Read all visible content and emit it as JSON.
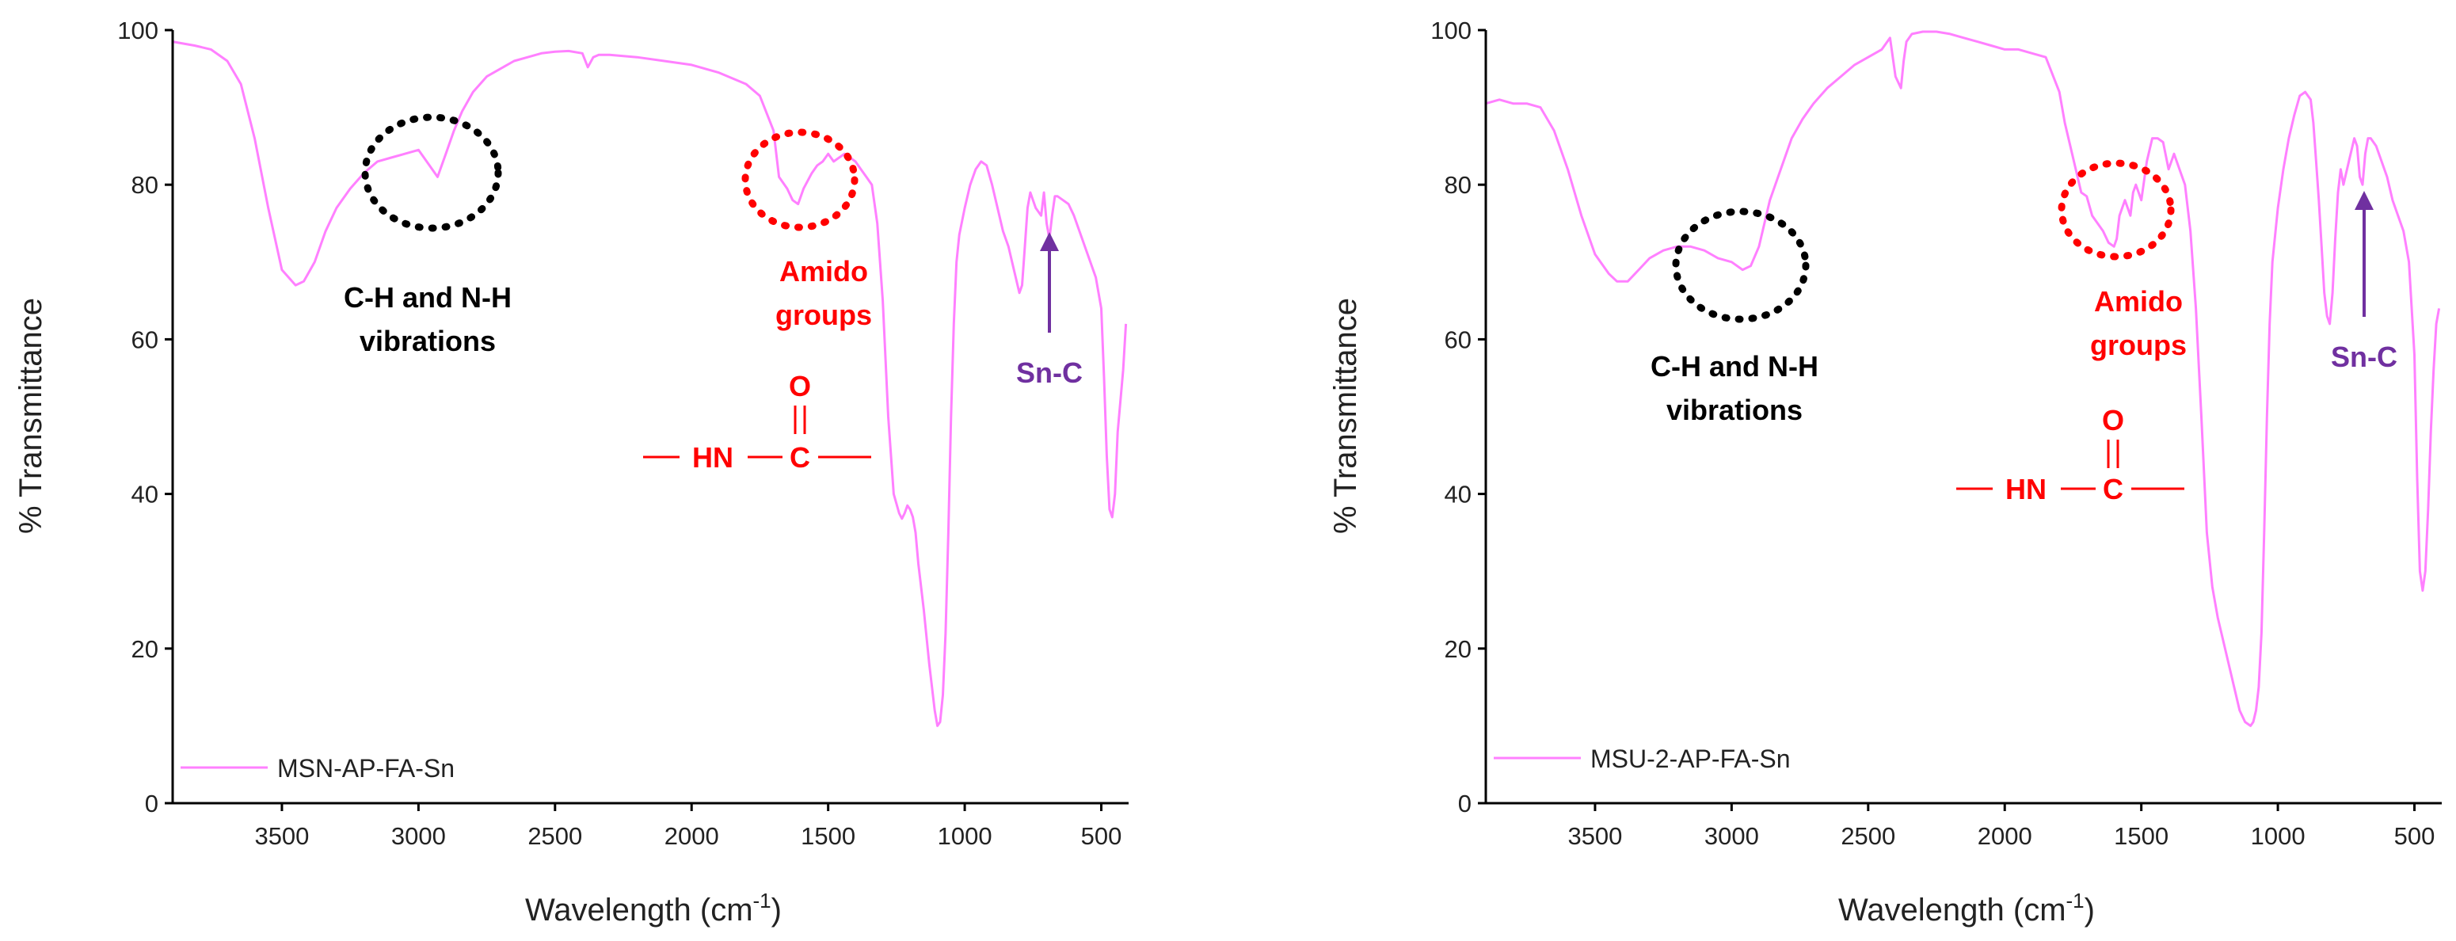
{
  "colors": {
    "series": "#ff80ff",
    "axis": "#000000",
    "annotation_black": "#000000",
    "annotation_red": "#ff0000",
    "annotation_purple": "#7030a0"
  },
  "chart_data": [
    {
      "type": "line",
      "title": "",
      "xlabel": "Wavelength (cm",
      "xlabel_sup": "-1",
      "xlabel_end": ")",
      "ylabel": "% Transmittance",
      "xlim": [
        3900,
        400
      ],
      "ylim": [
        0,
        100
      ],
      "x_ticks": [
        3500,
        3000,
        2500,
        2000,
        1500,
        1000,
        500
      ],
      "y_ticks": [
        0,
        20,
        40,
        60,
        80,
        100
      ],
      "grid": false,
      "legend": "bottom-left",
      "series": [
        {
          "name": "MSN-AP-FA-Sn",
          "x": [
            3900,
            3820,
            3760,
            3700,
            3650,
            3600,
            3550,
            3500,
            3450,
            3420,
            3380,
            3340,
            3300,
            3250,
            3200,
            3150,
            3100,
            3050,
            3000,
            2960,
            2930,
            2900,
            2870,
            2840,
            2800,
            2750,
            2700,
            2650,
            2600,
            2550,
            2500,
            2450,
            2400,
            2380,
            2360,
            2340,
            2300,
            2200,
            2100,
            2000,
            1900,
            1800,
            1750,
            1700,
            1680,
            1650,
            1630,
            1610,
            1590,
            1560,
            1540,
            1520,
            1500,
            1480,
            1460,
            1440,
            1420,
            1400,
            1380,
            1360,
            1340,
            1320,
            1300,
            1280,
            1260,
            1240,
            1230,
            1220,
            1210,
            1200,
            1190,
            1180,
            1170,
            1150,
            1130,
            1110,
            1100,
            1090,
            1080,
            1070,
            1060,
            1050,
            1040,
            1030,
            1020,
            1000,
            980,
            960,
            940,
            920,
            900,
            880,
            860,
            840,
            820,
            800,
            790,
            780,
            770,
            760,
            740,
            720,
            710,
            700,
            690,
            680,
            670,
            660,
            640,
            620,
            600,
            580,
            560,
            540,
            520,
            500,
            490,
            480,
            470,
            460,
            450,
            440,
            420,
            410
          ],
          "y": [
            98.5,
            98,
            97.5,
            96,
            93,
            86,
            77,
            69,
            67,
            67.5,
            70,
            74,
            77,
            79.5,
            81.5,
            83,
            83.5,
            84,
            84.5,
            82.5,
            81,
            84,
            87,
            89.5,
            92,
            94,
            95,
            96,
            96.5,
            97,
            97.2,
            97.3,
            97,
            95.2,
            96.5,
            96.8,
            96.8,
            96.5,
            96,
            95.5,
            94.5,
            93,
            91.5,
            87,
            81,
            79.5,
            78,
            77.5,
            79.5,
            81.5,
            82.5,
            83,
            84,
            83,
            83.5,
            84,
            83.5,
            83,
            82,
            81,
            80,
            75,
            65,
            50,
            40,
            37.5,
            36.8,
            37.5,
            38.5,
            38,
            37,
            35,
            31,
            25,
            18,
            12,
            10,
            10.5,
            14,
            22,
            35,
            50,
            62,
            70,
            73.5,
            77,
            80,
            82,
            83,
            82.5,
            80,
            77,
            74,
            72,
            69,
            66,
            67,
            72,
            77,
            79,
            77,
            76,
            79,
            75,
            73,
            76,
            78.5,
            78.5,
            78,
            77.5,
            76,
            74,
            72,
            70,
            68,
            64,
            55,
            45,
            38,
            37,
            40,
            48,
            56,
            62
          ]
        }
      ],
      "annotations": {
        "ch_nh_line1": "C-H and N-H",
        "ch_nh_line2": "vibrations",
        "amido_line1": "Amido",
        "amido_line2": "groups",
        "amido_o": "O",
        "amido_hn": "HN",
        "amido_c": "C",
        "snc": "Sn-C"
      }
    },
    {
      "type": "line",
      "title": "",
      "xlabel": "Wavelength (cm",
      "xlabel_sup": "-1",
      "xlabel_end": ")",
      "ylabel": "% Transmittance",
      "xlim": [
        3900,
        400
      ],
      "ylim": [
        0,
        100
      ],
      "x_ticks": [
        3500,
        3000,
        2500,
        2000,
        1500,
        1000,
        500
      ],
      "y_ticks": [
        0,
        20,
        40,
        60,
        80,
        100
      ],
      "grid": false,
      "legend": "bottom-left",
      "series": [
        {
          "name": "MSU-2-AP-FA-Sn",
          "x": [
            3900,
            3850,
            3800,
            3750,
            3700,
            3650,
            3600,
            3550,
            3500,
            3450,
            3420,
            3380,
            3340,
            3300,
            3250,
            3200,
            3150,
            3100,
            3050,
            3000,
            2960,
            2930,
            2900,
            2880,
            2860,
            2820,
            2780,
            2740,
            2700,
            2650,
            2600,
            2550,
            2500,
            2450,
            2420,
            2400,
            2380,
            2370,
            2360,
            2340,
            2300,
            2250,
            2200,
            2150,
            2100,
            2050,
            2000,
            1950,
            1900,
            1850,
            1800,
            1780,
            1760,
            1740,
            1720,
            1700,
            1680,
            1660,
            1640,
            1620,
            1600,
            1590,
            1580,
            1560,
            1540,
            1530,
            1520,
            1500,
            1480,
            1460,
            1440,
            1420,
            1400,
            1380,
            1360,
            1340,
            1320,
            1300,
            1280,
            1260,
            1240,
            1220,
            1200,
            1180,
            1160,
            1140,
            1120,
            1100,
            1090,
            1080,
            1070,
            1060,
            1050,
            1040,
            1030,
            1020,
            1000,
            980,
            960,
            940,
            920,
            900,
            880,
            870,
            860,
            850,
            840,
            830,
            820,
            810,
            800,
            790,
            780,
            770,
            760,
            740,
            720,
            710,
            700,
            690,
            680,
            670,
            660,
            640,
            620,
            600,
            580,
            560,
            540,
            520,
            500,
            490,
            480,
            470,
            460,
            450,
            440,
            430,
            420,
            410
          ],
          "y": [
            90.5,
            91,
            90.5,
            90.5,
            90,
            87,
            82,
            76,
            71,
            68.5,
            67.5,
            67.5,
            69,
            70.5,
            71.5,
            72,
            72,
            71.5,
            70.5,
            70,
            69,
            69.5,
            72,
            75,
            78,
            82,
            86,
            88.5,
            90.5,
            92.5,
            94,
            95.5,
            96.5,
            97.5,
            99,
            94,
            92.5,
            96,
            98.5,
            99.5,
            99.8,
            99.8,
            99.5,
            99,
            98.5,
            98,
            97.5,
            97.5,
            97,
            96.5,
            92,
            88,
            85,
            82,
            79,
            78.5,
            76,
            75,
            74,
            72.5,
            72,
            73,
            76,
            78,
            76,
            79,
            80,
            78,
            83,
            86,
            86,
            85.5,
            82,
            84,
            82,
            80,
            74,
            64,
            50,
            35,
            28,
            24,
            21,
            18,
            15,
            12,
            10.5,
            10,
            10.5,
            12,
            15,
            22,
            35,
            50,
            62,
            70,
            77,
            82,
            86,
            89,
            91.5,
            92,
            91,
            88,
            83,
            78,
            72,
            66,
            63,
            62,
            66,
            73,
            79,
            82,
            80,
            83,
            86,
            85,
            81,
            80,
            84,
            86,
            86,
            85,
            83,
            81,
            78,
            76,
            74,
            70,
            58,
            42,
            30,
            27.5,
            30,
            38,
            48,
            56,
            62,
            64
          ]
        }
      ],
      "annotations": {
        "ch_nh_line1": "C-H and N-H",
        "ch_nh_line2": "vibrations",
        "amido_line1": "Amido",
        "amido_line2": "groups",
        "amido_o": "O",
        "amido_hn": "HN",
        "amido_c": "C",
        "snc": "Sn-C"
      }
    }
  ]
}
